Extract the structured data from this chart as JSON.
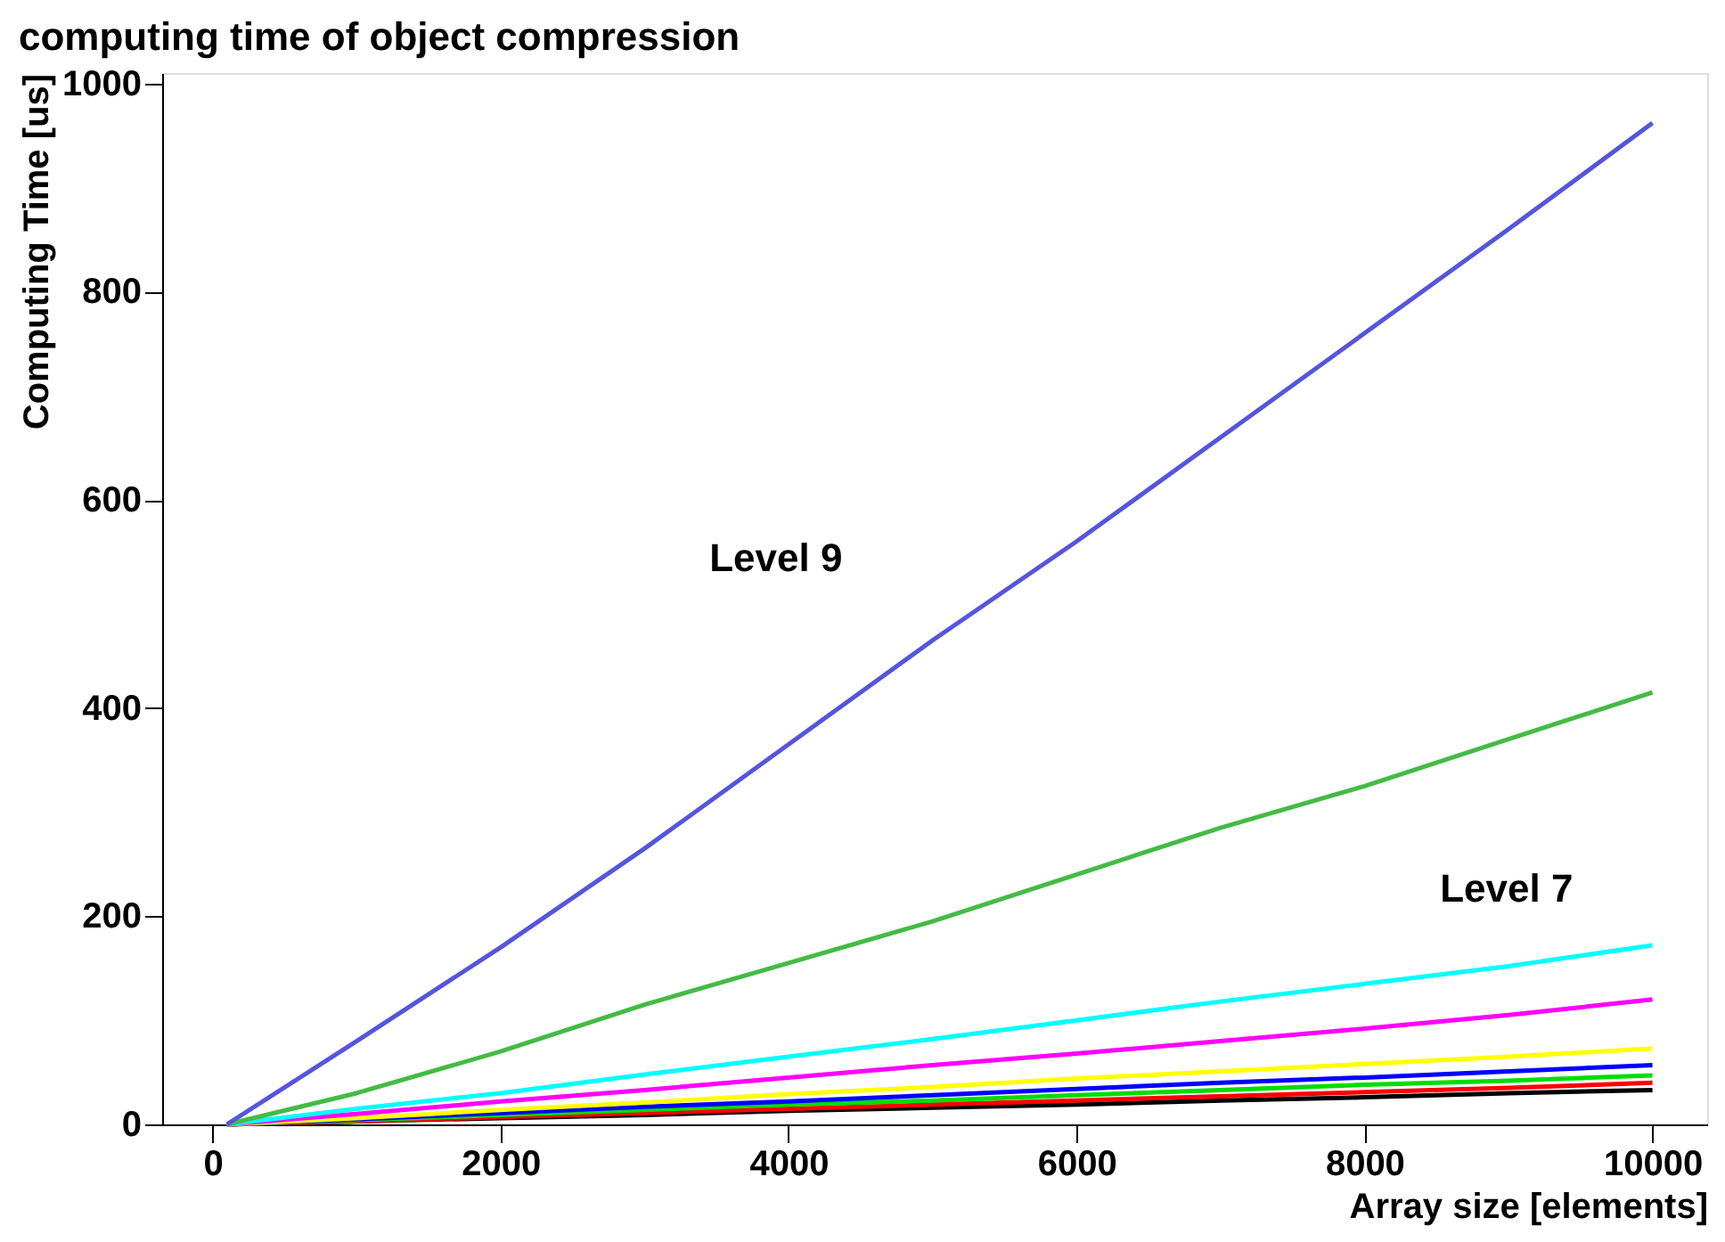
{
  "chart_data": {
    "type": "line",
    "title": "computing time of object compression",
    "xlabel": "Array size [elements]",
    "ylabel": "Computing Time  [us]",
    "x": [
      100,
      1000,
      2000,
      3000,
      4000,
      5000,
      6000,
      7000,
      8000,
      9000,
      10000
    ],
    "series": [
      {
        "color": "#000000",
        "values": [
          0,
          3,
          6,
          9,
          13,
          16,
          19,
          23,
          26,
          30,
          33
        ]
      },
      {
        "color": "#ff0000",
        "values": [
          0,
          3,
          7,
          11,
          15,
          19,
          23,
          27,
          31,
          35,
          40
        ]
      },
      {
        "color": "#00dd00",
        "values": [
          0,
          4,
          9,
          14,
          19,
          23,
          28,
          33,
          38,
          42,
          47
        ]
      },
      {
        "color": "#0000ff",
        "values": [
          0,
          5,
          11,
          17,
          22,
          28,
          34,
          40,
          45,
          51,
          57
        ]
      },
      {
        "color": "#ffff00",
        "values": [
          0,
          6,
          14,
          21,
          29,
          36,
          44,
          51,
          58,
          65,
          73
        ]
      },
      {
        "color": "#ff00ff",
        "values": [
          0,
          10,
          22,
          33,
          45,
          57,
          68,
          80,
          92,
          105,
          120
        ]
      },
      {
        "color": "#00ffff",
        "values": [
          0,
          15,
          30,
          48,
          65,
          82,
          100,
          118,
          135,
          152,
          172
        ]
      },
      {
        "color": "#44bb44",
        "values": [
          0,
          30,
          70,
          115,
          155,
          195,
          240,
          285,
          325,
          370,
          415
        ]
      },
      {
        "color": "#5555dd",
        "values": [
          0,
          80,
          170,
          265,
          365,
          465,
          560,
          660,
          760,
          860,
          962
        ]
      }
    ],
    "annotations": [
      "Level 9",
      "Level 7"
    ],
    "xlim": [
      -350,
      10380
    ],
    "ylim": [
      0,
      1010
    ],
    "xticks": [
      0,
      2000,
      4000,
      6000,
      8000,
      10000
    ],
    "yticks": [
      0,
      200,
      400,
      600,
      800,
      1000
    ],
    "grid": false,
    "legend": false,
    "marker": "none",
    "line_style": "solid"
  }
}
